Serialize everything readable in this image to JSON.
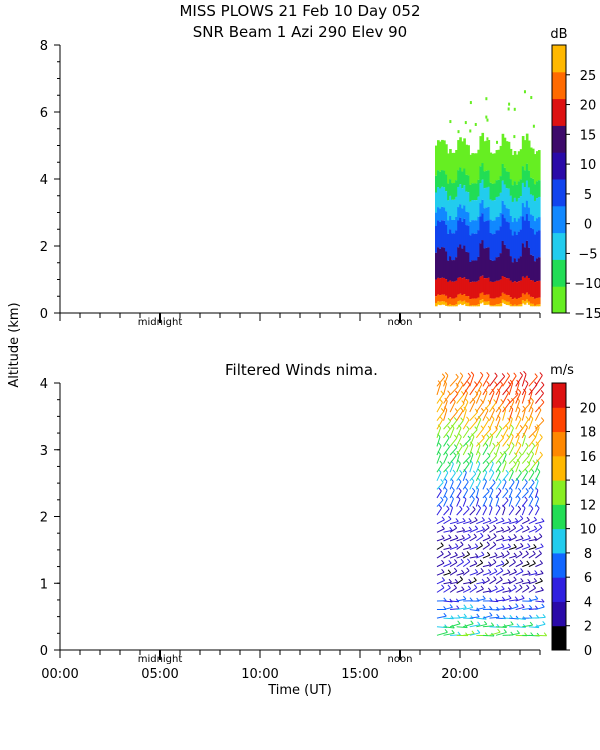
{
  "title_line1": "MISS PLOWS  21 Feb 10 Day 052",
  "title_line2": "SNR Beam 1 Azi 290 Elev 90",
  "shared_ylabel": "Altitude (km)",
  "shared_xlabel": "Time (UT)",
  "markers": {
    "midnight": "midnight",
    "noon": "noon"
  },
  "chart_data": [
    {
      "type": "heatmap",
      "title": "SNR Beam 1 Azi 290 Elev 90",
      "xlim": [
        0,
        24
      ],
      "ylim": [
        0,
        8
      ],
      "yticks": [
        0,
        2,
        4,
        6,
        8
      ],
      "ylabel": "Altitude (km)",
      "colorbar": {
        "unit": "dB",
        "ticks": [
          -15,
          -10,
          -5,
          0,
          5,
          10,
          15,
          20,
          25
        ],
        "tick_labels": [
          "−15",
          "−10",
          "−5",
          "0",
          "5",
          "10",
          "15",
          "20",
          "25"
        ],
        "range": [
          -15,
          30
        ],
        "colors": [
          "#66ee22",
          "#22dd55",
          "#22ccee",
          "#1188ff",
          "#1144ee",
          "#2a0aa8",
          "#3d0a6a",
          "#dd1111",
          "#ff6a00",
          "#ffb800"
        ]
      },
      "data_window_hours": [
        18.75,
        24
      ],
      "layers_km": [
        {
          "level_db": -15,
          "color": "#66ee22",
          "band_km": [
            4.1,
            5.0
          ]
        },
        {
          "level_db": -10,
          "color": "#22dd55",
          "band_km": [
            3.6,
            4.1
          ]
        },
        {
          "level_db": -5,
          "color": "#22ccee",
          "band_km": [
            3.0,
            3.6
          ]
        },
        {
          "level_db": 0,
          "color": "#1188ff",
          "band_km": [
            2.6,
            3.0
          ]
        },
        {
          "level_db": 5,
          "color": "#1144ee",
          "band_km": [
            1.8,
            2.6
          ]
        },
        {
          "level_db": 10,
          "color": "#3d0a6a",
          "band_km": [
            1.0,
            1.8
          ]
        },
        {
          "level_db": 15,
          "color": "#dd1111",
          "band_km": [
            0.5,
            1.0
          ]
        },
        {
          "level_db": 20,
          "color": "#ff6a00",
          "band_km": [
            0.3,
            0.5
          ]
        },
        {
          "level_db": 25,
          "color": "#ffb800",
          "band_km": [
            0.2,
            0.3
          ]
        }
      ]
    },
    {
      "type": "scatter",
      "title": "Filtered Winds nima.",
      "xlim": [
        0,
        24
      ],
      "ylim": [
        0,
        4
      ],
      "yticks": [
        0,
        1,
        2,
        3,
        4
      ],
      "xticks": [
        0,
        5,
        10,
        15,
        20
      ],
      "xtick_labels": [
        "00:00",
        "05:00",
        "10:00",
        "15:00",
        "20:00"
      ],
      "xlabel": "Time (UT)",
      "colorbar": {
        "unit": "m/s",
        "ticks": [
          0,
          2,
          4,
          6,
          8,
          10,
          12,
          14,
          16,
          18,
          20
        ],
        "tick_labels": [
          "0",
          "2",
          "4",
          "6",
          "8",
          "10",
          "12",
          "14",
          "16",
          "18",
          "20"
        ],
        "range": [
          0,
          22
        ],
        "colors": [
          "#000000",
          "#2a0aa8",
          "#3020e0",
          "#1166ff",
          "#22ccee",
          "#22dd55",
          "#88ee22",
          "#ffb800",
          "#ff8800",
          "#ff4400",
          "#dd1111"
        ]
      },
      "data_window_hours": [
        18.75,
        24
      ],
      "wind_speed_profile": [
        {
          "alt_km": 0.25,
          "speed_ms": 11
        },
        {
          "alt_km": 0.5,
          "speed_ms": 8
        },
        {
          "alt_km": 1.0,
          "speed_ms": 3
        },
        {
          "alt_km": 1.5,
          "speed_ms": 3
        },
        {
          "alt_km": 2.0,
          "speed_ms": 5
        },
        {
          "alt_km": 2.5,
          "speed_ms": 8
        },
        {
          "alt_km": 3.0,
          "speed_ms": 12
        },
        {
          "alt_km": 3.5,
          "speed_ms": 15
        },
        {
          "alt_km": 3.9,
          "speed_ms": 18
        }
      ]
    }
  ]
}
